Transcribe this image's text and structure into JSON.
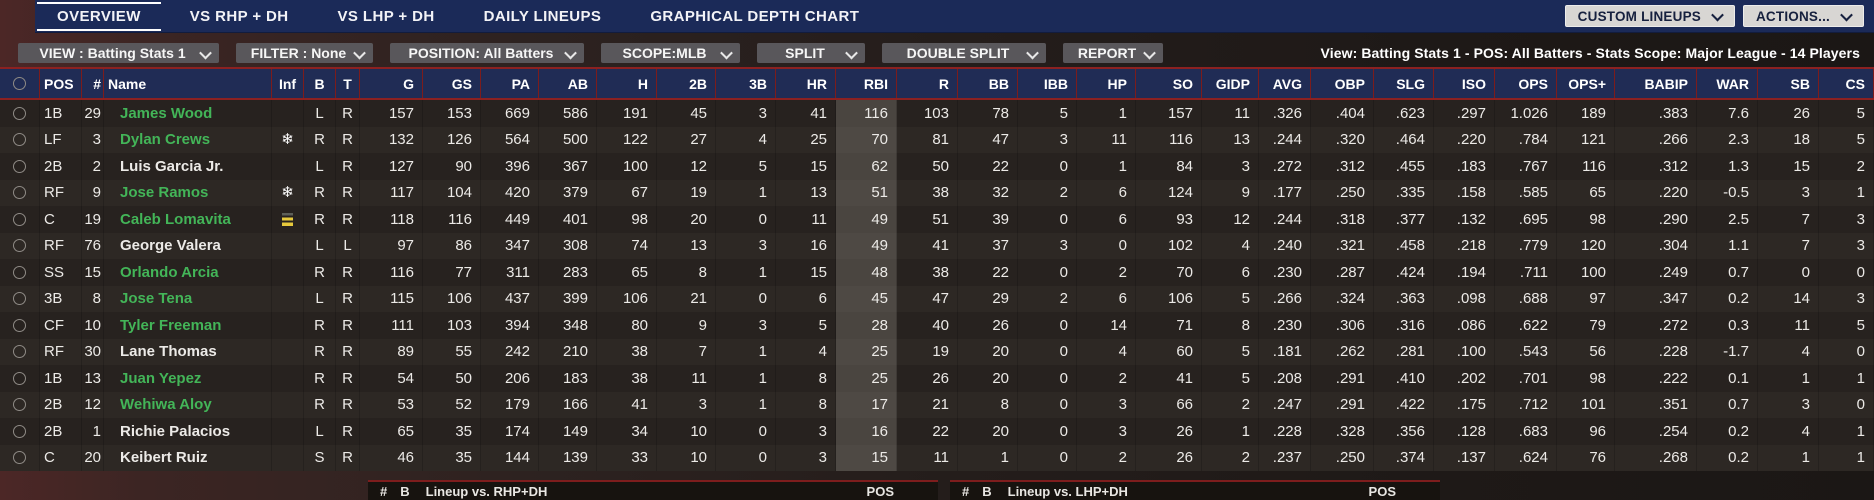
{
  "nav": {
    "tabs": [
      {
        "label": "OVERVIEW",
        "active": true
      },
      {
        "label": "VS RHP + DH",
        "active": false
      },
      {
        "label": "VS LHP + DH",
        "active": false
      },
      {
        "label": "DAILY LINEUPS",
        "active": false
      },
      {
        "label": "GRAPHICAL DEPTH CHART",
        "active": false
      }
    ],
    "buttons": [
      {
        "label": "CUSTOM LINEUPS"
      },
      {
        "label": "ACTIONS..."
      }
    ]
  },
  "filter_bar": {
    "dropdowns": [
      {
        "label": "VIEW : Batting Stats 1"
      },
      {
        "label": "FILTER : None"
      },
      {
        "label": "POSITION: All Batters"
      },
      {
        "label": "SCOPE:MLB"
      },
      {
        "label": "SPLIT"
      },
      {
        "label": "DOUBLE SPLIT"
      },
      {
        "label": "REPORT"
      }
    ],
    "summary": "View: Batting Stats 1 - POS: All Batters - Stats Scope: Major League - 14 Players"
  },
  "table": {
    "columns": [
      "",
      "POS",
      "#",
      "Name",
      "Inf",
      "B",
      "T",
      "G",
      "GS",
      "PA",
      "AB",
      "H",
      "2B",
      "3B",
      "HR",
      "RBI",
      "R",
      "BB",
      "IBB",
      "HP",
      "SO",
      "GIDP",
      "AVG",
      "OBP",
      "SLG",
      "ISO",
      "OPS",
      "OPS+",
      "BABIP",
      "WAR",
      "SB",
      "CS"
    ],
    "highlight_column": "RBI",
    "rows": [
      {
        "pos": "1B",
        "num": "29",
        "name": "James Wood",
        "name_color": "green",
        "inf": "",
        "b": "L",
        "t": "R",
        "stats": [
          "157",
          "153",
          "669",
          "586",
          "191",
          "45",
          "3",
          "41",
          "116",
          "103",
          "78",
          "5",
          "1",
          "157",
          "11",
          ".326",
          ".404",
          ".623",
          ".297",
          "1.026",
          "189",
          ".383",
          "7.6",
          "26",
          "5"
        ]
      },
      {
        "pos": "LF",
        "num": "3",
        "name": "Dylan Crews",
        "name_color": "green",
        "inf": "snowflake",
        "b": "R",
        "t": "R",
        "stats": [
          "132",
          "126",
          "564",
          "500",
          "122",
          "27",
          "4",
          "25",
          "70",
          "81",
          "47",
          "3",
          "11",
          "116",
          "13",
          ".244",
          ".320",
          ".464",
          ".220",
          ".784",
          "121",
          ".266",
          "2.3",
          "18",
          "5"
        ]
      },
      {
        "pos": "2B",
        "num": "2",
        "name": "Luis Garcia Jr.",
        "name_color": "white",
        "inf": "",
        "b": "L",
        "t": "R",
        "stats": [
          "127",
          "90",
          "396",
          "367",
          "100",
          "12",
          "5",
          "15",
          "62",
          "50",
          "22",
          "0",
          "1",
          "84",
          "3",
          ".272",
          ".312",
          ".455",
          ".183",
          ".767",
          "116",
          ".312",
          "1.3",
          "15",
          "2"
        ]
      },
      {
        "pos": "RF",
        "num": "9",
        "name": "Jose Ramos",
        "name_color": "green",
        "inf": "snowflake",
        "b": "R",
        "t": "R",
        "stats": [
          "117",
          "104",
          "420",
          "379",
          "67",
          "19",
          "1",
          "13",
          "51",
          "38",
          "32",
          "2",
          "6",
          "124",
          "9",
          ".177",
          ".250",
          ".335",
          ".158",
          ".585",
          "65",
          ".220",
          "-0.5",
          "3",
          "1"
        ]
      },
      {
        "pos": "C",
        "num": "19",
        "name": "Caleb Lomavita",
        "name_color": "green",
        "inf": "status-bars",
        "b": "R",
        "t": "R",
        "stats": [
          "118",
          "116",
          "449",
          "401",
          "98",
          "20",
          "0",
          "11",
          "49",
          "51",
          "39",
          "0",
          "6",
          "93",
          "12",
          ".244",
          ".318",
          ".377",
          ".132",
          ".695",
          "98",
          ".290",
          "2.5",
          "7",
          "3"
        ]
      },
      {
        "pos": "RF",
        "num": "76",
        "name": "George Valera",
        "name_color": "white",
        "inf": "",
        "b": "L",
        "t": "L",
        "stats": [
          "97",
          "86",
          "347",
          "308",
          "74",
          "13",
          "3",
          "16",
          "49",
          "41",
          "37",
          "3",
          "0",
          "102",
          "4",
          ".240",
          ".321",
          ".458",
          ".218",
          ".779",
          "120",
          ".304",
          "1.1",
          "7",
          "3"
        ]
      },
      {
        "pos": "SS",
        "num": "15",
        "name": "Orlando Arcia",
        "name_color": "green",
        "inf": "",
        "b": "R",
        "t": "R",
        "stats": [
          "116",
          "77",
          "311",
          "283",
          "65",
          "8",
          "1",
          "15",
          "48",
          "38",
          "22",
          "0",
          "2",
          "70",
          "6",
          ".230",
          ".287",
          ".424",
          ".194",
          ".711",
          "100",
          ".249",
          "0.7",
          "0",
          "0"
        ]
      },
      {
        "pos": "3B",
        "num": "8",
        "name": "Jose Tena",
        "name_color": "green",
        "inf": "",
        "b": "L",
        "t": "R",
        "stats": [
          "115",
          "106",
          "437",
          "399",
          "106",
          "21",
          "0",
          "6",
          "45",
          "47",
          "29",
          "2",
          "6",
          "106",
          "5",
          ".266",
          ".324",
          ".363",
          ".098",
          ".688",
          "97",
          ".347",
          "0.2",
          "14",
          "3"
        ]
      },
      {
        "pos": "CF",
        "num": "10",
        "name": "Tyler Freeman",
        "name_color": "green",
        "inf": "",
        "b": "R",
        "t": "R",
        "stats": [
          "111",
          "103",
          "394",
          "348",
          "80",
          "9",
          "3",
          "5",
          "28",
          "40",
          "26",
          "0",
          "14",
          "71",
          "8",
          ".230",
          ".306",
          ".316",
          ".086",
          ".622",
          "79",
          ".272",
          "0.3",
          "11",
          "5"
        ]
      },
      {
        "pos": "RF",
        "num": "30",
        "name": "Lane Thomas",
        "name_color": "white",
        "inf": "",
        "b": "R",
        "t": "R",
        "stats": [
          "89",
          "55",
          "242",
          "210",
          "38",
          "7",
          "1",
          "4",
          "25",
          "19",
          "20",
          "0",
          "4",
          "60",
          "5",
          ".181",
          ".262",
          ".281",
          ".100",
          ".543",
          "56",
          ".228",
          "-1.7",
          "4",
          "0"
        ]
      },
      {
        "pos": "1B",
        "num": "13",
        "name": "Juan Yepez",
        "name_color": "green",
        "inf": "",
        "b": "R",
        "t": "R",
        "stats": [
          "54",
          "50",
          "206",
          "183",
          "38",
          "11",
          "1",
          "8",
          "25",
          "26",
          "20",
          "0",
          "2",
          "41",
          "5",
          ".208",
          ".291",
          ".410",
          ".202",
          ".701",
          "98",
          ".222",
          "0.1",
          "1",
          "1"
        ]
      },
      {
        "pos": "2B",
        "num": "12",
        "name": "Wehiwa Aloy",
        "name_color": "green",
        "inf": "",
        "b": "R",
        "t": "R",
        "stats": [
          "53",
          "52",
          "179",
          "166",
          "41",
          "3",
          "1",
          "8",
          "17",
          "21",
          "8",
          "0",
          "3",
          "66",
          "2",
          ".247",
          ".291",
          ".422",
          ".175",
          ".712",
          "101",
          ".351",
          "0.7",
          "3",
          "0"
        ]
      },
      {
        "pos": "2B",
        "num": "1",
        "name": "Richie Palacios",
        "name_color": "white",
        "inf": "",
        "b": "L",
        "t": "R",
        "stats": [
          "65",
          "35",
          "174",
          "149",
          "34",
          "10",
          "0",
          "3",
          "16",
          "22",
          "20",
          "0",
          "3",
          "26",
          "1",
          ".228",
          ".328",
          ".356",
          ".128",
          ".683",
          "96",
          ".254",
          "0.2",
          "4",
          "1"
        ]
      },
      {
        "pos": "C",
        "num": "20",
        "name": "Keibert Ruiz",
        "name_color": "white",
        "inf": "",
        "b": "S",
        "t": "R",
        "stats": [
          "46",
          "35",
          "144",
          "139",
          "33",
          "10",
          "0",
          "3",
          "15",
          "11",
          "1",
          "0",
          "2",
          "26",
          "2",
          ".237",
          ".250",
          ".374",
          ".137",
          ".624",
          "76",
          ".268",
          "0.2",
          "1",
          "1"
        ]
      }
    ]
  },
  "lineup_panels": [
    {
      "hash": "#",
      "bats": "B",
      "title": "Lineup vs. RHP+DH",
      "pos": "POS"
    },
    {
      "hash": "#",
      "bats": "B",
      "title": "Lineup vs. LHP+DH",
      "pos": "POS"
    }
  ],
  "colors": {
    "nav_navy": "#1b2a58",
    "header_navy": "#202c55",
    "border_red": "#8c2121",
    "name_green": "#43b558",
    "row_text": "#eceae7",
    "rbi_highlight": "#4a4540",
    "status_yellow": "#e6c93c"
  }
}
